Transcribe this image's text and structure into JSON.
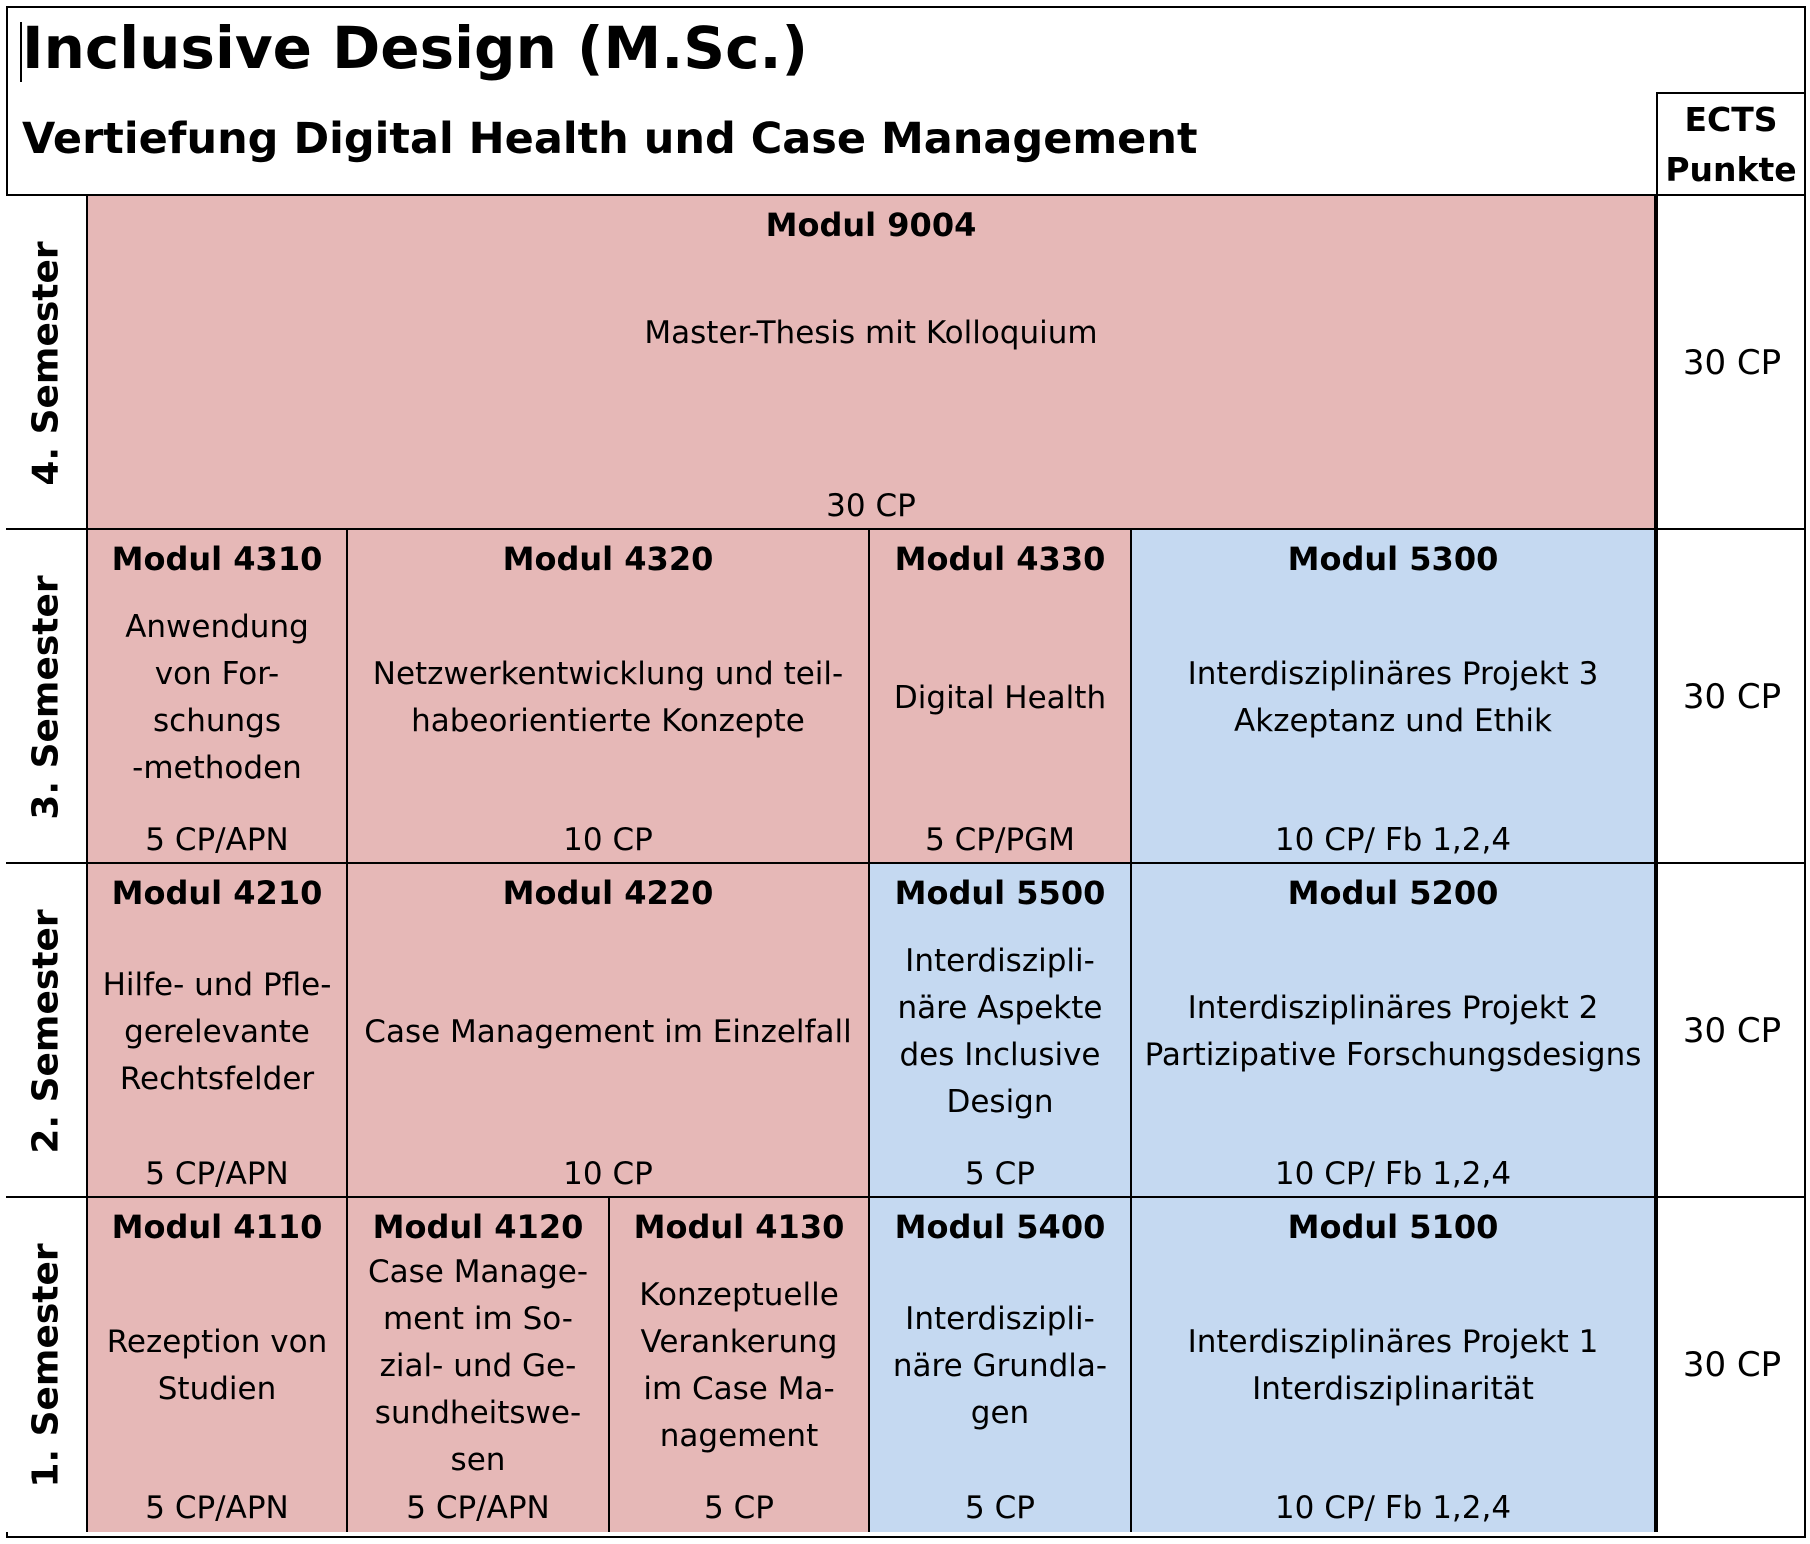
{
  "header": {
    "title": "Inclusive Design (M.Sc.)",
    "subtitle": "Vertiefung Digital Health und Case Management",
    "ects_line1": "ECTS",
    "ects_line2": "Punkte"
  },
  "colors": {
    "pink": "#e6b8b7",
    "blue": "#c5d9f1"
  },
  "semesters": [
    {
      "label": "4. Semester",
      "ects": "30 CP",
      "modules": [
        {
          "module": "Modul 9004",
          "desc": "Master-Thesis mit Kolloquium",
          "cp": "30 CP",
          "color": "pink"
        }
      ]
    },
    {
      "label": "3. Semester",
      "ects": "30 CP",
      "modules": [
        {
          "module": "Modul 4310",
          "desc": "Anwendung\nvon For-\nschungs\n-methoden",
          "cp": "5 CP/APN",
          "color": "pink"
        },
        {
          "module": "Modul 4320",
          "desc": "Netzwerkentwicklung und teil-\nhabeorientierte Konzepte",
          "cp": "10 CP",
          "color": "pink"
        },
        {
          "module": "Modul 4330",
          "desc": "Digital Health",
          "cp": "5 CP/PGM",
          "color": "pink"
        },
        {
          "module": "Modul 5300",
          "desc": "Interdisziplinäres Projekt 3\nAkzeptanz und Ethik",
          "cp": "10 CP/ Fb 1,2,4",
          "color": "blue"
        }
      ]
    },
    {
      "label": "2. Semester",
      "ects": "30 CP",
      "modules": [
        {
          "module": "Modul 4210",
          "desc": "Hilfe- und Pfle-\ngerelevante\nRechtsfelder",
          "cp": "5 CP/APN",
          "color": "pink"
        },
        {
          "module": "Modul 4220",
          "desc": "Case Management im Einzelfall",
          "cp": "10 CP",
          "color": "pink"
        },
        {
          "module": "Modul 5500",
          "desc": "Interdiszipli-\nnäre Aspekte\ndes Inclusive\nDesign",
          "cp": "5 CP",
          "color": "blue"
        },
        {
          "module": "Modul 5200",
          "desc": "Interdisziplinäres Projekt 2\nPartizipative Forschungsdesigns",
          "cp": "10 CP/ Fb 1,2,4",
          "color": "blue"
        }
      ]
    },
    {
      "label": "1. Semester",
      "ects": "30 CP",
      "modules": [
        {
          "module": "Modul 4110",
          "desc": "Rezeption von\nStudien",
          "cp": "5 CP/APN",
          "color": "pink"
        },
        {
          "module": "Modul 4120",
          "desc": "Case Manage-\nment im So-\nzial- und Ge-\nsundheitswe-\nsen",
          "cp": "5 CP/APN",
          "color": "pink"
        },
        {
          "module": "Modul 4130",
          "desc": "Konzeptuelle\nVerankerung\nim Case Ma-\nnagement",
          "cp": "5 CP",
          "color": "pink"
        },
        {
          "module": "Modul 5400",
          "desc": "Interdiszipli-\nnäre Grundla-\ngen",
          "cp": "5 CP",
          "color": "blue"
        },
        {
          "module": "Modul 5100",
          "desc": "Interdisziplinäres Projekt 1\nInterdisziplinarität",
          "cp": "10 CP/ Fb 1,2,4",
          "color": "blue"
        }
      ]
    }
  ]
}
